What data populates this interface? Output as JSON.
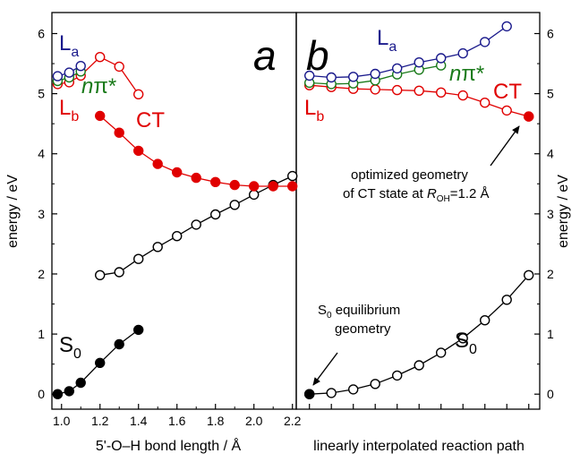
{
  "colors": {
    "black": "#000000",
    "red": "#e00000",
    "blue": "#1a1a8c",
    "green": "#1a7a1a"
  },
  "chart_data": [
    {
      "type": "line",
      "panel_letter": "a",
      "xlabel": "5'-O–H bond length / Å",
      "ylabel": "energy / eV",
      "xlim": [
        0.95,
        2.22
      ],
      "ylim": [
        -0.25,
        6.35
      ],
      "xticks": [
        "1.0",
        "1.2",
        "1.4",
        "1.6",
        "1.8",
        "2.0",
        "2.2"
      ],
      "yticks": [
        "0",
        "1",
        "2",
        "3",
        "4",
        "5",
        "6"
      ],
      "series": [
        {
          "key": "a_S0",
          "color_key": "black",
          "filled": true,
          "x": [
            0.98,
            1.04,
            1.1,
            1.2,
            1.3,
            1.4
          ],
          "y": [
            0.0,
            0.05,
            0.19,
            0.52,
            0.83,
            1.07
          ]
        },
        {
          "key": "a_S0upper",
          "color_key": "black",
          "filled": false,
          "x": [
            1.2,
            1.3,
            1.4,
            1.5,
            1.6,
            1.7,
            1.8,
            1.9,
            2.0,
            2.1,
            2.2
          ],
          "y": [
            1.98,
            2.03,
            2.25,
            2.45,
            2.63,
            2.82,
            2.99,
            3.15,
            3.32,
            3.48,
            3.63
          ]
        },
        {
          "key": "a_CT",
          "color_key": "red",
          "filled": true,
          "x": [
            1.2,
            1.3,
            1.4,
            1.5,
            1.6,
            1.7,
            1.8,
            1.9,
            2.0,
            2.1,
            2.2
          ],
          "y": [
            4.63,
            4.35,
            4.05,
            3.83,
            3.69,
            3.6,
            3.53,
            3.48,
            3.46,
            3.46,
            3.46
          ]
        },
        {
          "key": "a_Lb",
          "color_key": "red",
          "filled": false,
          "x": [
            0.98,
            1.04,
            1.1,
            1.2,
            1.3,
            1.4
          ],
          "y": [
            5.16,
            5.19,
            5.3,
            5.61,
            5.45,
            4.99
          ]
        },
        {
          "key": "a_npi",
          "color_key": "green",
          "filled": false,
          "x": [
            0.98,
            1.04,
            1.1
          ],
          "y": [
            5.21,
            5.27,
            5.37
          ]
        },
        {
          "key": "a_La",
          "color_key": "blue",
          "filled": false,
          "x": [
            0.98,
            1.04,
            1.1
          ],
          "y": [
            5.29,
            5.35,
            5.46
          ]
        }
      ]
    },
    {
      "type": "line",
      "panel_letter": "b",
      "xlabel": "linearly interpolated reaction path",
      "ylabel": "energy / eV",
      "xlim": [
        -0.6,
        10.5
      ],
      "ylim": [
        -0.25,
        6.35
      ],
      "yticks": [
        "0",
        "1",
        "2",
        "3",
        "4",
        "5",
        "6"
      ],
      "series": [
        {
          "key": "b_S0",
          "color_key": "black",
          "filled": false,
          "x": [
            0,
            1,
            2,
            3,
            4,
            5,
            6,
            7,
            8,
            9,
            10
          ],
          "y": [
            0.0,
            0.02,
            0.08,
            0.17,
            0.31,
            0.48,
            0.69,
            0.93,
            1.23,
            1.57,
            1.98
          ]
        },
        {
          "key": "b_Lb",
          "color_key": "red",
          "filled": false,
          "x": [
            0,
            1,
            2,
            3,
            4,
            5,
            6,
            7,
            8,
            9,
            10
          ],
          "y": [
            5.14,
            5.11,
            5.08,
            5.07,
            5.06,
            5.05,
            5.02,
            4.97,
            4.85,
            4.72,
            4.62
          ]
        },
        {
          "key": "b_npi",
          "color_key": "green",
          "filled": false,
          "x": [
            0,
            1,
            2,
            3,
            4,
            5,
            6
          ],
          "y": [
            5.18,
            5.16,
            5.17,
            5.22,
            5.32,
            5.4,
            5.47
          ]
        },
        {
          "key": "b_La",
          "color_key": "blue",
          "filled": false,
          "x": [
            0,
            1,
            2,
            3,
            4,
            5,
            6,
            7,
            8,
            9
          ],
          "y": [
            5.3,
            5.27,
            5.28,
            5.33,
            5.42,
            5.52,
            5.59,
            5.67,
            5.86,
            6.12
          ]
        },
        {
          "key": "b_CTend",
          "color_key": "red",
          "filled": true,
          "x": [
            10
          ],
          "y": [
            4.62
          ]
        },
        {
          "key": "b_S0start",
          "color_key": "black",
          "filled": true,
          "x": [
            0
          ],
          "y": [
            0.0
          ]
        }
      ],
      "annotations": {
        "opt_line1": "optimized geometry",
        "opt_line2_pre": "of CT state at ",
        "opt_R": "R",
        "opt_sub": "OH",
        "opt_val": "=1.2 Å",
        "s0_sub": "0",
        "s0_line1_post": " equilibrium",
        "s0_line2": "geometry"
      }
    }
  ],
  "labels": {
    "La": "L",
    "La_sub": "a",
    "Lb": "L",
    "Lb_sub": "b",
    "npi_n": "n",
    "npi_pi": "π*",
    "CT": "CT",
    "S0": "S",
    "S0_sub": "0",
    "S0_small": "S"
  }
}
